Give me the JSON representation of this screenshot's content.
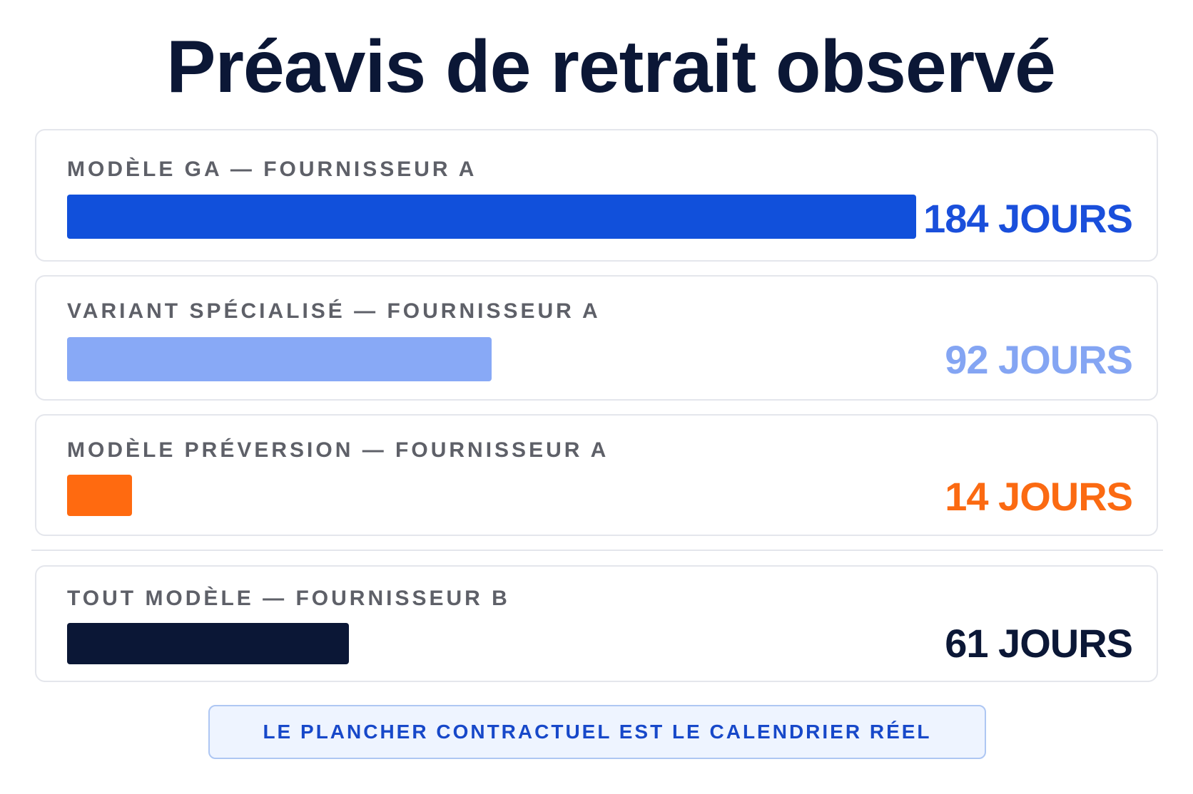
{
  "title": "Préavis de retrait observé",
  "chart_data": {
    "type": "bar",
    "orientation": "horizontal",
    "title": "Préavis de retrait observé",
    "unit": "JOURS",
    "xlim": [
      0,
      184
    ],
    "rows": [
      {
        "label": "MODÈLE GA — FOURNISSEUR A",
        "value": 184,
        "value_label": "184 JOURS",
        "color": "#1150db",
        "text_color": "#1a4fdb"
      },
      {
        "label": "VARIANT SPÉCIALISÉ — FOURNISSEUR A",
        "value": 92,
        "value_label": "92 JOURS",
        "color": "#88a9f6",
        "text_color": "#84a5f3"
      },
      {
        "label": "MODÈLE PRÉVERSION — FOURNISSEUR A",
        "value": 14,
        "value_label": "14 JOURS",
        "color": "#ff6a10",
        "text_color": "#fb6a12"
      },
      {
        "label": "TOUT MODÈLE — FOURNISSEUR B",
        "value": 61,
        "value_label": "61 JOURS",
        "color": "#0b1736",
        "text_color": "#0b1736"
      }
    ],
    "annotation": "LE PLANCHER CONTRACTUEL EST LE CALENDRIER RÉEL",
    "grid": false,
    "legend": "none"
  }
}
